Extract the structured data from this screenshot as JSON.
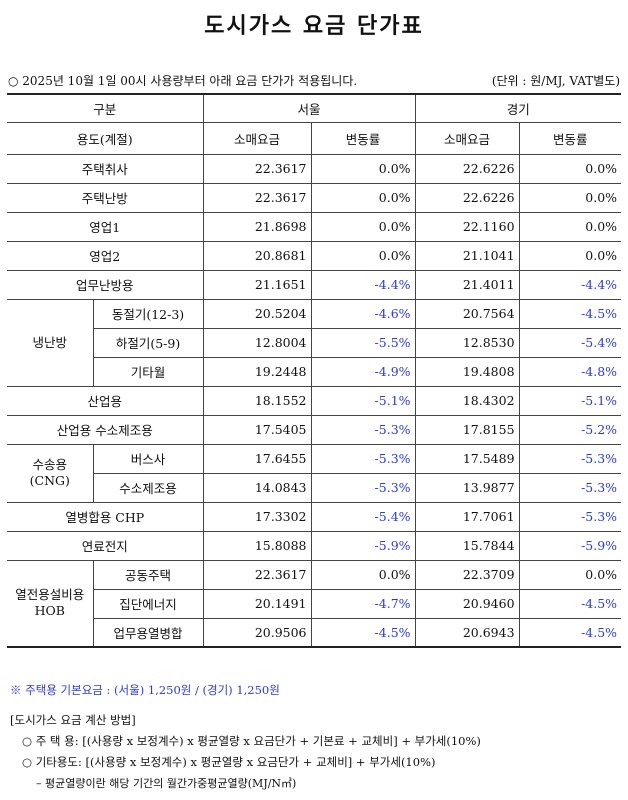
{
  "title": "도시가스 요금 단가표",
  "info": {
    "notice": "○ 2025년 10월 1일 00시 사용량부터 아래 요금 단가가 적용됩니다.",
    "unit": "(단위 : 원/MJ, VAT별도)"
  },
  "header": {
    "group": "구분",
    "seoul": "서울",
    "gyeonggi": "경기",
    "usage": "용도(계절)",
    "retail": "소매요금",
    "change": "변동률"
  },
  "rows": [
    {
      "main": "주택취사",
      "sub": "",
      "s_price": "22.3617",
      "s_change": "0.0%",
      "g_price": "22.6226",
      "g_change": "0.0%"
    },
    {
      "main": "주택난방",
      "sub": "",
      "s_price": "22.3617",
      "s_change": "0.0%",
      "g_price": "22.6226",
      "g_change": "0.0%"
    },
    {
      "main": "영업1",
      "sub": "",
      "s_price": "21.8698",
      "s_change": "0.0%",
      "g_price": "22.1160",
      "g_change": "0.0%"
    },
    {
      "main": "영업2",
      "sub": "",
      "s_price": "20.8681",
      "s_change": "0.0%",
      "g_price": "21.1041",
      "g_change": "0.0%"
    },
    {
      "main": "업무난방용",
      "sub": "",
      "s_price": "21.1651",
      "s_change": "-4.4%",
      "g_price": "21.4011",
      "g_change": "-4.4%"
    },
    {
      "main": "냉난방",
      "sub": "동절기(12-3)",
      "s_price": "20.5204",
      "s_change": "-4.6%",
      "g_price": "20.7564",
      "g_change": "-4.5%"
    },
    {
      "main": "냉난방",
      "sub": "하절기(5-9)",
      "s_price": "12.8004",
      "s_change": "-5.5%",
      "g_price": "12.8530",
      "g_change": "-5.4%"
    },
    {
      "main": "냉난방",
      "sub": "기타월",
      "s_price": "19.2448",
      "s_change": "-4.9%",
      "g_price": "19.4808",
      "g_change": "-4.8%"
    },
    {
      "main": "산업용",
      "sub": "",
      "s_price": "18.1552",
      "s_change": "-5.1%",
      "g_price": "18.4302",
      "g_change": "-5.1%"
    },
    {
      "main": "산업용 수소제조용",
      "sub": "",
      "s_price": "17.5405",
      "s_change": "-5.3%",
      "g_price": "17.8155",
      "g_change": "-5.2%"
    },
    {
      "main": "수송용\n(CNG)",
      "sub": "버스사",
      "s_price": "17.6455",
      "s_change": "-5.3%",
      "g_price": "17.5489",
      "g_change": "-5.3%"
    },
    {
      "main": "수송용\n(CNG)",
      "sub": "수소제조용",
      "s_price": "14.0843",
      "s_change": "-5.3%",
      "g_price": "13.9877",
      "g_change": "-5.3%"
    },
    {
      "main": "열병합용 CHP",
      "sub": "",
      "s_price": "17.3302",
      "s_change": "-5.4%",
      "g_price": "17.7061",
      "g_change": "-5.3%"
    },
    {
      "main": "연료전지",
      "sub": "",
      "s_price": "15.8088",
      "s_change": "-5.9%",
      "g_price": "15.7844",
      "g_change": "-5.9%"
    },
    {
      "main": "열전용설비용\nHOB",
      "sub": "공동주택",
      "s_price": "22.3617",
      "s_change": "0.0%",
      "g_price": "22.3709",
      "g_change": "0.0%"
    },
    {
      "main": "열전용설비용\nHOB",
      "sub": "집단에너지",
      "s_price": "20.1491",
      "s_change": "-4.7%",
      "g_price": "20.9460",
      "g_change": "-4.5%"
    },
    {
      "main": "열전용설비용\nHOB",
      "sub": "업무용열병합",
      "s_price": "20.9506",
      "s_change": "-4.5%",
      "g_price": "20.6943",
      "g_change": "-4.5%"
    }
  ],
  "note": "※ 주택용 기본요금 : (서울) 1,250원 / (경기) 1,250원",
  "method": {
    "heading": "[도시가스 요금 계산 방법]",
    "residential": "○ 주 택 용: [(사용량 x 보정계수) x 평균열량 x 요금단가 + 기본료 + 교체비] + 부가세(10%)",
    "other": "○ 기타용도: [(사용량 x 보정계수) x 평균열량 x 요금단가 + 교체비] + 부가세(10%)",
    "footnote": "– 평균열량이란 해당 기간의 월간가중평균열량(MJ/N㎥)"
  },
  "colors": {
    "negative": "#2b3bd6",
    "text": "#111111"
  }
}
